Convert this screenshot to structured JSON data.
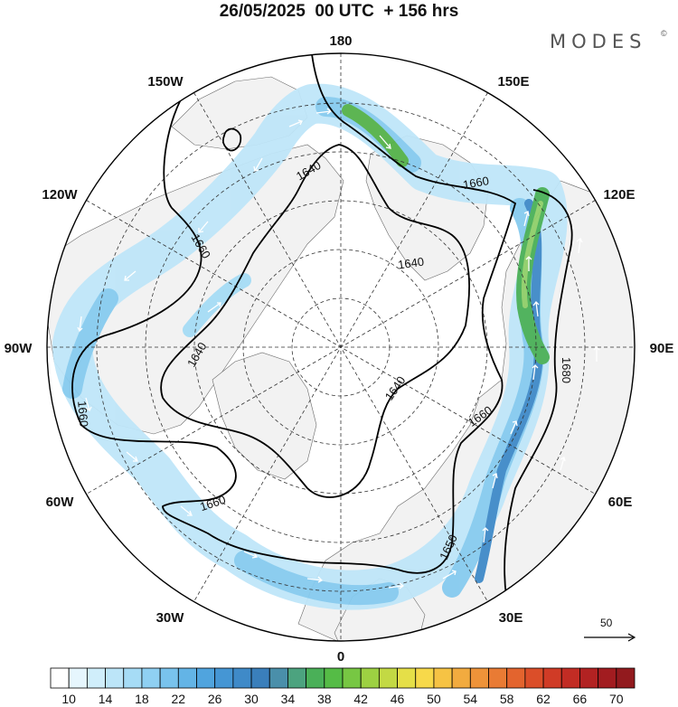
{
  "title": "26/05/2025  00 UTC  + 156 hrs",
  "brand": {
    "name": "MODES",
    "mark": "©"
  },
  "longitude_labels": [
    {
      "id": "180",
      "text": "180"
    },
    {
      "id": "150e",
      "text": "150E"
    },
    {
      "id": "120e",
      "text": "120E"
    },
    {
      "id": "90e",
      "text": "90E"
    },
    {
      "id": "60e",
      "text": "60E"
    },
    {
      "id": "30e",
      "text": "30E"
    },
    {
      "id": "0",
      "text": "0"
    },
    {
      "id": "30w",
      "text": "30W"
    },
    {
      "id": "60w",
      "text": "60W"
    },
    {
      "id": "90w",
      "text": "90W"
    },
    {
      "id": "120w",
      "text": "120W"
    },
    {
      "id": "150w",
      "text": "150W"
    }
  ],
  "contour_labels": [
    "1640",
    "1660",
    "1660",
    "1640",
    "1640",
    "1660",
    "1640",
    "1660",
    "1660",
    "1680",
    "1650"
  ],
  "reference_vector": {
    "value": "50"
  },
  "colorbar": {
    "labels": [
      "10",
      "14",
      "18",
      "22",
      "26",
      "30",
      "34",
      "38",
      "42",
      "46",
      "50",
      "54",
      "58",
      "62",
      "66",
      "70"
    ],
    "colors": [
      "#ffffff",
      "#e6f6fd",
      "#d0eefb",
      "#bce5f8",
      "#a6dcf6",
      "#8fd0f2",
      "#79c3ed",
      "#63b4e6",
      "#50a4de",
      "#4596d4",
      "#3f8ac8",
      "#3a7fbb",
      "#4a8faa",
      "#4ca37f",
      "#4ab058",
      "#55bc46",
      "#77c743",
      "#9dd142",
      "#c3d944",
      "#e5df48",
      "#f7d94a",
      "#f6c344",
      "#f2ab3f",
      "#ee9339",
      "#e97b34",
      "#e3642e",
      "#db4e29",
      "#d03b26",
      "#c22c24",
      "#b22222",
      "#a21c20",
      "#921a1e"
    ]
  }
}
